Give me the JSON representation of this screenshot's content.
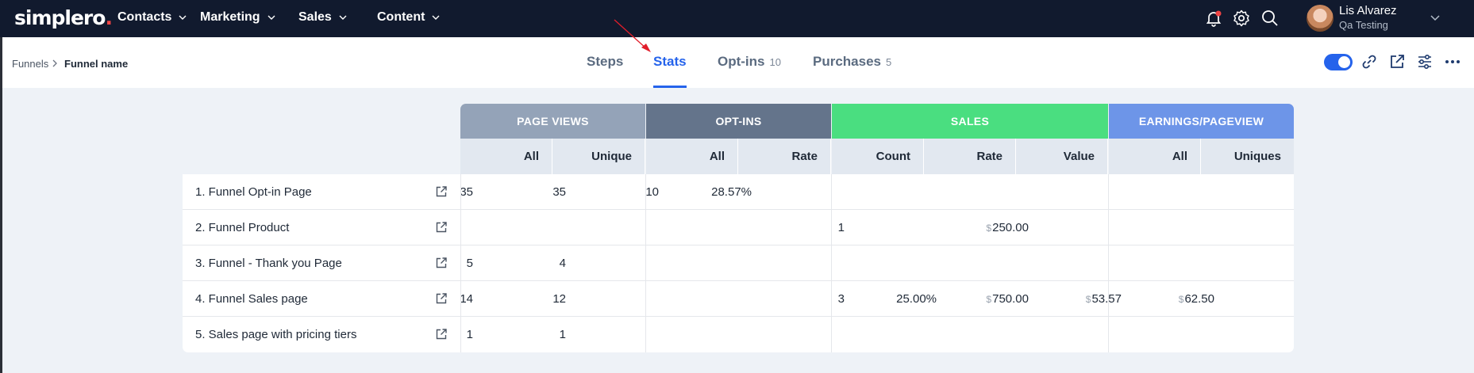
{
  "app": {
    "logo": "simplero",
    "logo_dot": "."
  },
  "nav": {
    "items": [
      {
        "label": "Contacts"
      },
      {
        "label": "Marketing"
      },
      {
        "label": "Sales"
      },
      {
        "label": "Content"
      }
    ]
  },
  "user": {
    "name": "Lis Alvarez",
    "account": "Qa Testing"
  },
  "breadcrumb": {
    "root": "Funnels",
    "current": "Funnel name"
  },
  "tabs": [
    {
      "label": "Steps",
      "count": ""
    },
    {
      "label": "Stats",
      "count": ""
    },
    {
      "label": "Opt-ins",
      "count": "10"
    },
    {
      "label": "Purchases",
      "count": "5"
    }
  ],
  "active_tab": "Stats",
  "toggle": {
    "on": true
  },
  "colors": {
    "accent": "#2563eb",
    "navbar": "#111a2e",
    "page_views": "#94a3b8",
    "opt_ins": "#64748b",
    "sales": "#4ade80",
    "earnings": "#6d95e8"
  },
  "table": {
    "groups": {
      "page_views": "PAGE VIEWS",
      "opt_ins": "OPT-INS",
      "sales": "SALES",
      "earnings": "EARNINGS/PAGEVIEW"
    },
    "columns": [
      "All",
      "Unique",
      "All",
      "Rate",
      "Count",
      "Rate",
      "Value",
      "All",
      "Uniques"
    ],
    "currency_symbol": "$",
    "rows": [
      {
        "name": "1. Funnel Opt-in Page",
        "pv_all": "35",
        "pv_unique": "35",
        "oi_all": "10",
        "oi_rate": "28.57%",
        "sales_count": "",
        "sales_rate": "",
        "sales_value": "",
        "epv_all": "",
        "epv_uniques": ""
      },
      {
        "name": "2. Funnel Product",
        "pv_all": "",
        "pv_unique": "",
        "oi_all": "",
        "oi_rate": "",
        "sales_count": "1",
        "sales_rate": "",
        "sales_value": "250.00",
        "epv_all": "",
        "epv_uniques": ""
      },
      {
        "name": "3. Funnel - Thank you Page",
        "pv_all": "5",
        "pv_unique": "4",
        "oi_all": "",
        "oi_rate": "",
        "sales_count": "",
        "sales_rate": "",
        "sales_value": "",
        "epv_all": "",
        "epv_uniques": ""
      },
      {
        "name": "4. Funnel Sales page",
        "pv_all": "14",
        "pv_unique": "12",
        "oi_all": "",
        "oi_rate": "",
        "sales_count": "3",
        "sales_rate": "25.00%",
        "sales_value": "750.00",
        "epv_all": "53.57",
        "epv_uniques": "62.50"
      },
      {
        "name": "5. Sales page with pricing tiers",
        "pv_all": "1",
        "pv_unique": "1",
        "oi_all": "",
        "oi_rate": "",
        "sales_count": "",
        "sales_rate": "",
        "sales_value": "",
        "epv_all": "",
        "epv_uniques": ""
      }
    ]
  }
}
